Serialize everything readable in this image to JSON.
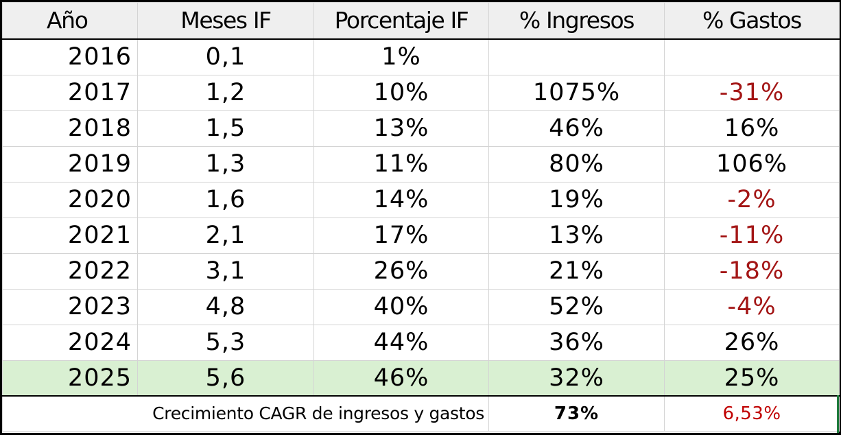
{
  "chart_data": {
    "type": "table",
    "columns": [
      "Año",
      "Meses IF",
      "Porcentaje IF",
      "% Ingresos",
      "% Gastos"
    ],
    "rows": [
      {
        "year": "2016",
        "months_if": "0,1",
        "pct_if": "1%",
        "income": "",
        "expense": "",
        "expense_negative": false
      },
      {
        "year": "2017",
        "months_if": "1,2",
        "pct_if": "10%",
        "income": "1075%",
        "expense": "-31%",
        "expense_negative": true
      },
      {
        "year": "2018",
        "months_if": "1,5",
        "pct_if": "13%",
        "income": "46%",
        "expense": "16%",
        "expense_negative": false
      },
      {
        "year": "2019",
        "months_if": "1,3",
        "pct_if": "11%",
        "income": "80%",
        "expense": "106%",
        "expense_negative": false
      },
      {
        "year": "2020",
        "months_if": "1,6",
        "pct_if": "14%",
        "income": "19%",
        "expense": "-2%",
        "expense_negative": true
      },
      {
        "year": "2021",
        "months_if": "2,1",
        "pct_if": "17%",
        "income": "13%",
        "expense": "-11%",
        "expense_negative": true
      },
      {
        "year": "2022",
        "months_if": "3,1",
        "pct_if": "26%",
        "income": "21%",
        "expense": "-18%",
        "expense_negative": true
      },
      {
        "year": "2023",
        "months_if": "4,8",
        "pct_if": "40%",
        "income": "52%",
        "expense": "-4%",
        "expense_negative": true
      },
      {
        "year": "2024",
        "months_if": "5,3",
        "pct_if": "44%",
        "income": "36%",
        "expense": "26%",
        "expense_negative": false
      },
      {
        "year": "2025",
        "months_if": "5,6",
        "pct_if": "46%",
        "income": "32%",
        "expense": "25%",
        "expense_negative": false
      }
    ],
    "highlight_row": "2025",
    "footer": {
      "label": "Crecimiento CAGR de ingresos y gastos",
      "income": "73%",
      "expense": "6,53%"
    }
  },
  "colors": {
    "header_background": "#efefef",
    "highlight_row": "#d9f0d2",
    "negative_text": "#a31515",
    "footer_expense_text": "#c00000",
    "grid_lines": "#d4d4d4",
    "outer_border": "#000000"
  }
}
